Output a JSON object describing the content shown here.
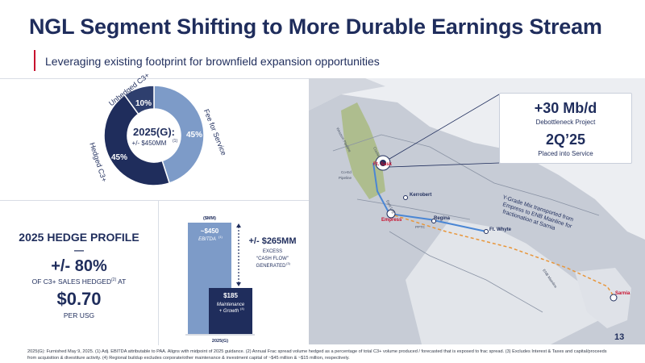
{
  "header": {
    "title": "NGL Segment Shifting to More Durable Earnings Stream",
    "subtitle": "Leveraging existing footprint for brownfield expansion opportunities"
  },
  "donut": {
    "center_title": "2025(G):",
    "center_sub": "+/- $450MM",
    "center_sup": "(1)",
    "segments": [
      {
        "label": "Fee for Service",
        "pct": "45%",
        "value": 45,
        "color": "#7d9bc8"
      },
      {
        "label": "Hedged C3+",
        "pct": "45%",
        "value": 45,
        "color": "#1f2d5c"
      },
      {
        "label": "Unhedged C3+",
        "pct": "10%",
        "value": 10,
        "color": "#2e3f6e"
      }
    ]
  },
  "hedge": {
    "title": "2025 HEDGE PROFILE",
    "dash": "—",
    "pct": "+/- 80%",
    "sub": "OF C3+ SALES HEDGED",
    "sub_sup": "(2)",
    "sub_tail": " AT",
    "price": "$0.70",
    "unit": "PER USG"
  },
  "bar_chart": {
    "unit_label": "($MM)",
    "bar1_value": "~$450",
    "bar1_label": "EBITDA",
    "bar1_sup": "(1)",
    "bar2_value": "$185",
    "bar2_label1": "Maintenance",
    "bar2_label2": "+ Growth",
    "bar2_sup": "(4)",
    "excess_value": "+/- $265MM",
    "excess_l1": "EXCESS",
    "excess_l2": "“CASH FLOW”",
    "excess_l3": "GENERATED",
    "excess_sup": "(3)",
    "x_label": "2025(G)"
  },
  "chart_data": {
    "type": "bar",
    "categories": [
      "2025(G)"
    ],
    "series": [
      {
        "name": "EBITDA",
        "values": [
          450
        ]
      },
      {
        "name": "Maintenance + Growth",
        "values": [
          185
        ]
      }
    ],
    "ylabel": "($MM)"
  },
  "callout": {
    "value1": "+30 Mb/d",
    "label1": "Debottleneck Project",
    "value2": "2Q’25",
    "label2": "Placed into Service"
  },
  "map": {
    "places": {
      "ft_sask": "Ft. Sask",
      "kerrobert": "Kerrobert",
      "empress": "Empress",
      "regina": "Regina",
      "ft_whyte": "Ft. Whyte",
      "sarnia": "Sarnia"
    },
    "pipelines": {
      "cochin": "Cochin",
      "co_ed": "Co-Ed",
      "pipeline": "Pipeline",
      "pptc": "PPTC",
      "enb_mainline": "ENB Mainline",
      "east_leg": "East Leg",
      "western_pipeline": "Western Pipeline"
    },
    "annotation_l1": "Y-Grade Mix transported from",
    "annotation_l2": "Empress to ENB Mainline for",
    "annotation_l3": "fractionation at Sarnia",
    "colors": {
      "land": "#c7ccd6",
      "water": "#eceef2",
      "pipeline": "#4a86d4",
      "marker": "#c8102e",
      "green": "#aebd8e"
    }
  },
  "page_number": "13",
  "footnote": "2025(G): Furnished May 9, 2025. (1) Adj. EBITDA attributable to PAA. Aligns with midpoint of 2025 guidance. (2) Annual Frac spread volume hedged as a percentage of total C3+ volume produced / forecasted that is exposed to frac spread. (3) Excludes Interest & Taxes and capital/proceeds from acquisition & divestiture activity. (4) Regional buildup excludes corporate/other maintenance & investment capital of ~$45 million & ~$15 million, respectively."
}
